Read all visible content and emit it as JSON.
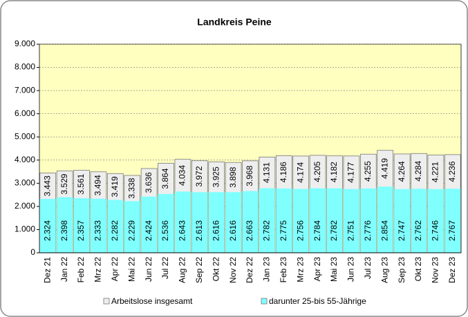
{
  "chart_data": {
    "type": "bar",
    "barmode": "overlay",
    "title": "Landkreis Peine",
    "categories": [
      "Dez 21",
      "Jan 22",
      "Feb 22",
      "Mrz 22",
      "Apr 22",
      "Mai 22",
      "Jun 22",
      "Jul 22",
      "Aug 22",
      "Sep 22",
      "Okt 22",
      "Nov 22",
      "Dez 22",
      "Jan 23",
      "Feb 23",
      "Mrz 23",
      "Apr 23",
      "Mai 23",
      "Jun 23",
      "Jul 23",
      "Aug 23",
      "Sep 23",
      "Okt 23",
      "Nov 23",
      "Dez 23"
    ],
    "series": [
      {
        "name": "Arbeitslose insgesamt",
        "color": "#eeeeee",
        "values": [
          3443,
          3529,
          3561,
          3494,
          3419,
          3338,
          3636,
          3864,
          4034,
          3972,
          3925,
          3898,
          3968,
          4131,
          4186,
          4174,
          4205,
          4182,
          4177,
          4255,
          4419,
          4264,
          4284,
          4221,
          4236
        ],
        "value_labels": [
          "3.443",
          "3.529",
          "3.561",
          "3.494",
          "3.419",
          "3.338",
          "3.636",
          "3.864",
          "4.034",
          "3.972",
          "3.925",
          "3.898",
          "3.968",
          "4.131",
          "4.186",
          "4.174",
          "4.205",
          "4.182",
          "4.177",
          "4.255",
          "4.419",
          "4.264",
          "4.284",
          "4.221",
          "4.236"
        ]
      },
      {
        "name": "darunter 25-bis 55-Jährige",
        "color": "#80ffff",
        "values": [
          2324,
          2398,
          2357,
          2333,
          2282,
          2229,
          2424,
          2536,
          2643,
          2613,
          2616,
          2616,
          2663,
          2782,
          2775,
          2756,
          2784,
          2782,
          2751,
          2776,
          2854,
          2747,
          2762,
          2746,
          2767
        ],
        "value_labels": [
          "2.324",
          "2.398",
          "2.357",
          "2.333",
          "2.282",
          "2.229",
          "2.424",
          "2.536",
          "2.643",
          "2.613",
          "2.616",
          "2.616",
          "2.663",
          "2.782",
          "2.775",
          "2.756",
          "2.784",
          "2.782",
          "2.751",
          "2.776",
          "2.854",
          "2.747",
          "2.762",
          "2.746",
          "2.767"
        ]
      }
    ],
    "ylim": [
      0,
      9000
    ],
    "yticks": [
      0,
      {
        "value": 1000,
        "label": "1.000"
      },
      {
        "value": 2000,
        "label": "2.000"
      },
      {
        "value": 3000,
        "label": "3.000"
      },
      {
        "value": 4000,
        "label": "4.000"
      },
      {
        "value": 5000,
        "label": "5.000"
      },
      {
        "value": 6000,
        "label": "6.000"
      },
      {
        "value": 7000,
        "label": "7.000"
      },
      {
        "value": 8000,
        "label": "8.000"
      },
      {
        "value": 9000,
        "label": "9.000"
      }
    ],
    "grid": true,
    "background": "#ffffc0",
    "legend": "bottom"
  }
}
